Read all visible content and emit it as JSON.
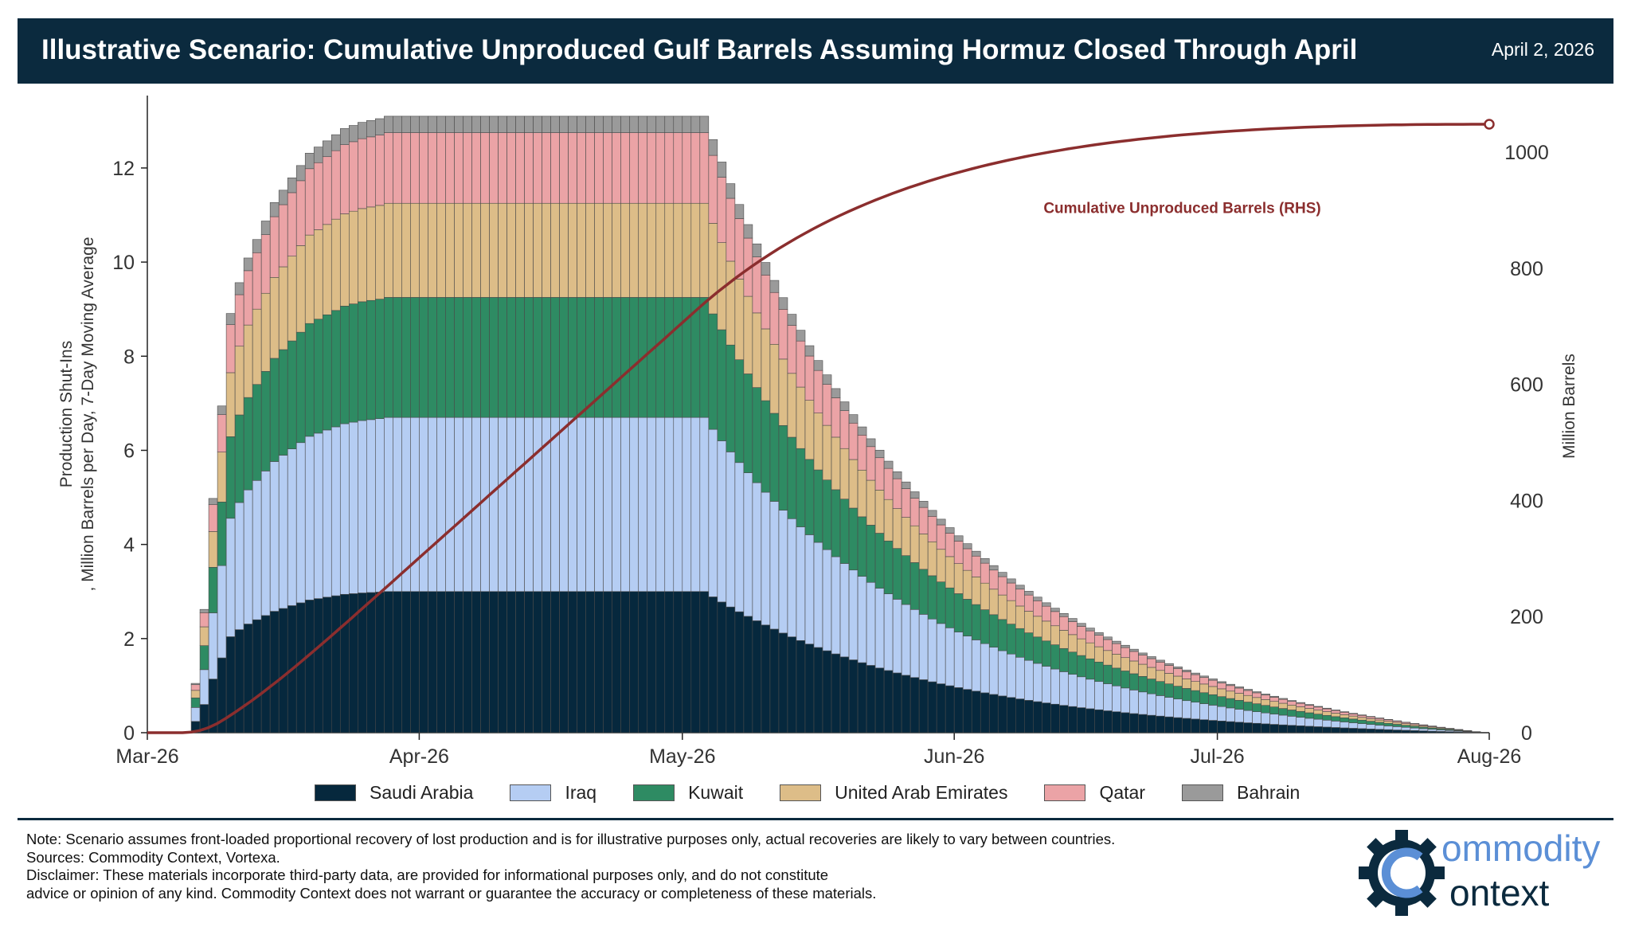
{
  "header": {
    "title": "Illustrative Scenario: Cumulative Unproduced Gulf Barrels Assuming Hormuz Closed Through April",
    "date": "April 2, 2026"
  },
  "footer": {
    "note": "Note: Scenario assumes front-loaded proportional recovery of lost production and is for illustrative purposes only, actual recoveries are likely to vary between countries.",
    "sources": "Sources: Commodity Context, Vortexa.",
    "disclaimer_1": "Disclaimer: These materials incorporate third-party data, are provided for informational purposes only, and do not constitute",
    "disclaimer_2": "advice or opinion of any kind. Commodity Context does not warrant or guarantee the accuracy or completeness of these materials."
  },
  "logo": {
    "word_1": "ommodity",
    "word_2": "ontext",
    "icon": "gear-c-icon"
  },
  "chart_data": {
    "type": "bar",
    "stacked": true,
    "ylabel": "Production Shut-Ins\n, Million Barrels per Day, 7-Day Moving Average",
    "y2label": "Million Barrels",
    "ylim": [
      0,
      13.2
    ],
    "y2lim": [
      0,
      1070
    ],
    "yticks": [
      0,
      2,
      4,
      6,
      8,
      10,
      12
    ],
    "y2ticks": [
      0,
      200,
      400,
      600,
      800,
      1000
    ],
    "x_start": "2026-03-01",
    "x_end": "2026-08-01",
    "xticks": [
      {
        "date": "2026-03-01",
        "label": "Mar-26"
      },
      {
        "date": "2026-04-01",
        "label": "Apr-26"
      },
      {
        "date": "2026-05-01",
        "label": "May-26"
      },
      {
        "date": "2026-06-01",
        "label": "Jun-26"
      },
      {
        "date": "2026-07-01",
        "label": "Jul-26"
      },
      {
        "date": "2026-08-01",
        "label": "Aug-26"
      }
    ],
    "series": [
      {
        "name": "Saudi Arabia",
        "color": "#06283d",
        "plateau": 3.0
      },
      {
        "name": "Iraq",
        "color": "#b5cdf3",
        "plateau": 3.7
      },
      {
        "name": "Kuwait",
        "color": "#2e8b63",
        "plateau": 2.55
      },
      {
        "name": "United Arab Emirates",
        "color": "#ddbd88",
        "plateau": 2.0
      },
      {
        "name": "Qatar",
        "color": "#eba3a6",
        "plateau": 1.5
      },
      {
        "name": "Bahrain",
        "color": "#9a9a9a",
        "plateau": 0.35
      }
    ],
    "ramp": {
      "dates": [
        "2026-03-06",
        "2026-03-07",
        "2026-03-08",
        "2026-03-09",
        "2026-03-10",
        "2026-03-11",
        "2026-03-12",
        "2026-03-13",
        "2026-03-14",
        "2026-03-15",
        "2026-03-16",
        "2026-03-17",
        "2026-03-18",
        "2026-03-19",
        "2026-03-20",
        "2026-03-21",
        "2026-03-22",
        "2026-03-23",
        "2026-03-24",
        "2026-03-25",
        "2026-03-26",
        "2026-03-27",
        "2026-03-28"
      ],
      "share_of_plateau": [
        0.08,
        0.2,
        0.38,
        0.53,
        0.68,
        0.73,
        0.77,
        0.8,
        0.83,
        0.86,
        0.88,
        0.9,
        0.92,
        0.94,
        0.95,
        0.96,
        0.97,
        0.98,
        0.985,
        0.99,
        0.993,
        0.996,
        1.0
      ]
    },
    "plateau_through": "2026-05-03",
    "decline_end": "2026-07-31",
    "cumulative_line": {
      "name": "Cumulative Unproduced Barrels (RHS)",
      "color": "#8b2e2e",
      "end_value": 1048,
      "end_date": "2026-08-01",
      "label_x_date": "2026-06-27",
      "label_y_value": 895
    }
  }
}
